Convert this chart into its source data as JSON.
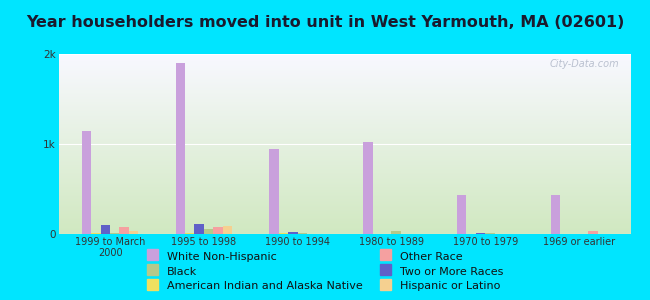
{
  "title": "Year householders moved into unit in West Yarmouth, MA (02601)",
  "categories": [
    "1999 to March\n2000",
    "1995 to 1998",
    "1990 to 1994",
    "1980 to 1989",
    "1970 to 1979",
    "1969 or earlier"
  ],
  "series": {
    "White Non-Hispanic": [
      1150,
      1900,
      950,
      1025,
      430,
      430
    ],
    "American Indian and Alaska Native": [
      10,
      10,
      8,
      5,
      5,
      5
    ],
    "Two or More Races": [
      95,
      115,
      25,
      5,
      15,
      5
    ],
    "Black": [
      15,
      55,
      10,
      30,
      10,
      5
    ],
    "Other Race": [
      80,
      80,
      5,
      5,
      5,
      30
    ],
    "Hispanic or Latino": [
      30,
      90,
      5,
      5,
      5,
      5
    ]
  },
  "colors": {
    "White Non-Hispanic": "#c9a0dc",
    "American Indian and Alaska Native": "#f0e060",
    "Two or More Races": "#6060c8",
    "Black": "#b5c98a",
    "Other Race": "#f5a0a0",
    "Hispanic or Latino": "#f5d090"
  },
  "background_outer": "#00e5ff",
  "background_plot_top": "#f8f8ff",
  "background_plot_bottom": "#d0e8c0",
  "ylim": [
    0,
    2000
  ],
  "yticks": [
    0,
    1000,
    2000
  ],
  "ytick_labels": [
    "0",
    "1k",
    "2k"
  ],
  "title_fontsize": 11.5,
  "legend_fontsize": 8,
  "watermark": "City-Data.com",
  "title_color": "#1a1a2e"
}
